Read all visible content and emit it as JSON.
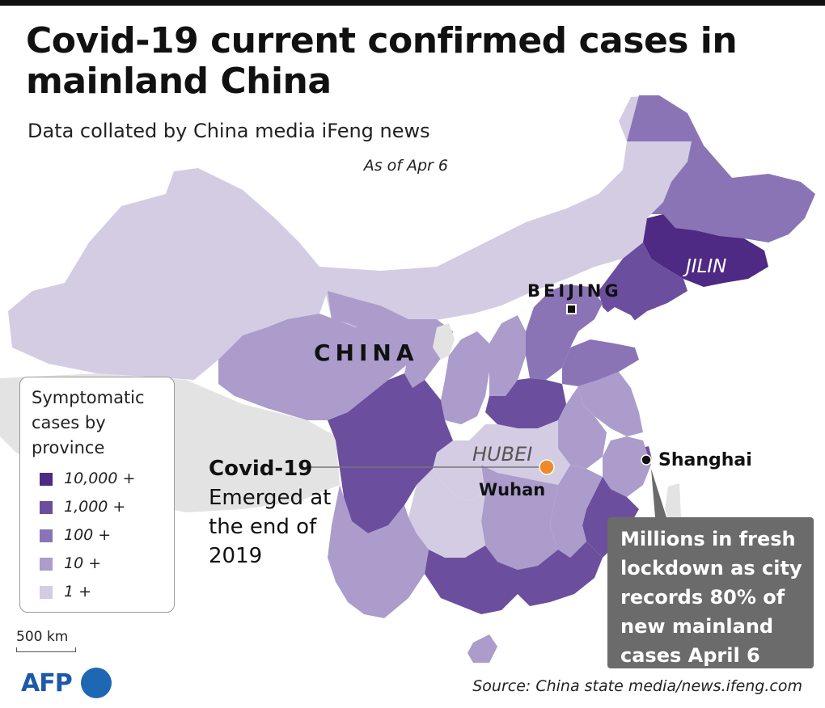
{
  "header": {
    "title": "Covid-19 current confirmed cases in mainland China",
    "subtitle": "Data collated by China media iFeng news",
    "date": "As of Apr 6"
  },
  "map": {
    "country_label": "CHINA",
    "places": {
      "beijing": "BEIJING",
      "jilin": "JILIN",
      "hubei": "HUBEI",
      "wuhan": "Wuhan",
      "shanghai": "Shanghai"
    },
    "marker_colors": {
      "origin": "#ee8a2a",
      "capital": "#111111"
    }
  },
  "origin_note": {
    "heading": "Covid-19",
    "body": "Emerged at the end of 2019"
  },
  "legend": {
    "title": "Symptomatic cases by province",
    "items": [
      {
        "label": "10,000 +",
        "color": "#4e2a84"
      },
      {
        "label": "1,000 +",
        "color": "#6b4f9e"
      },
      {
        "label": "100 +",
        "color": "#8a74b6"
      },
      {
        "label": "10 +",
        "color": "#ab9ccb"
      },
      {
        "label": "1 +",
        "color": "#d3cce3"
      }
    ],
    "no_data_color": "#e3e3e3"
  },
  "callout": {
    "text": "Millions in fresh lockdown as city records 80% of new mainland cases April 6"
  },
  "scale": {
    "label": "500 km"
  },
  "footer": {
    "logo": "AFP",
    "source": "Source: China state media/news.ifeng.com"
  }
}
